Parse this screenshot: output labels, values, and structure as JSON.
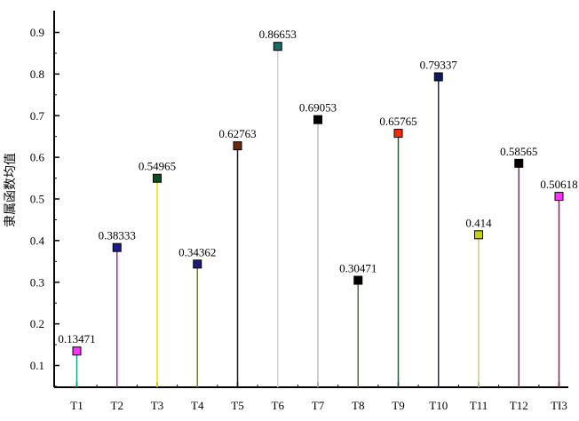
{
  "chart_data": {
    "type": "stem",
    "categories": [
      "T1",
      "T2",
      "T3",
      "T4",
      "T5",
      "T6",
      "T7",
      "T8",
      "T9",
      "T10",
      "T11",
      "T12",
      "TI3"
    ],
    "values": [
      0.13471,
      0.38333,
      0.54965,
      0.34362,
      0.62763,
      0.86653,
      0.69053,
      0.30471,
      0.65765,
      0.79337,
      0.414,
      0.58565,
      0.50618
    ],
    "value_labels": [
      "0.13471",
      "0.38333",
      "0.54965",
      "0.34362",
      "0.62763",
      "0.86653",
      "0.69053",
      "0.30471",
      "0.65765",
      "0.79337",
      "0.414",
      "0.58565",
      "0.50618"
    ],
    "marker_colors": [
      "#ff33ff",
      "#1a1a8c",
      "#0f4d1f",
      "#1f1a7a",
      "#6b2a10",
      "#1a6b66",
      "#000000",
      "#000000",
      "#ff2a00",
      "#0a1a5c",
      "#c8d20f",
      "#000000",
      "#ff33ff"
    ],
    "stem_colors": [
      "#14a08c",
      "#8c3c7a",
      "#e6e600",
      "#7a7a33",
      "#1a1a1a",
      "#d2d2d2",
      "#bebebe",
      "#4d6b4d",
      "#2a5a3a",
      "#2a2a4a",
      "#c8c88c",
      "#7a3a5a",
      "#7a2a5a"
    ],
    "ylabel": "隶属函数均值",
    "xlabel": "",
    "ylim": [
      0.05,
      0.95
    ],
    "yticks": [
      "0.1",
      "0.2",
      "0.3",
      "0.4",
      "0.5",
      "0.6",
      "0.7",
      "0.8",
      "0.9"
    ],
    "grid": false,
    "legend": "none"
  }
}
